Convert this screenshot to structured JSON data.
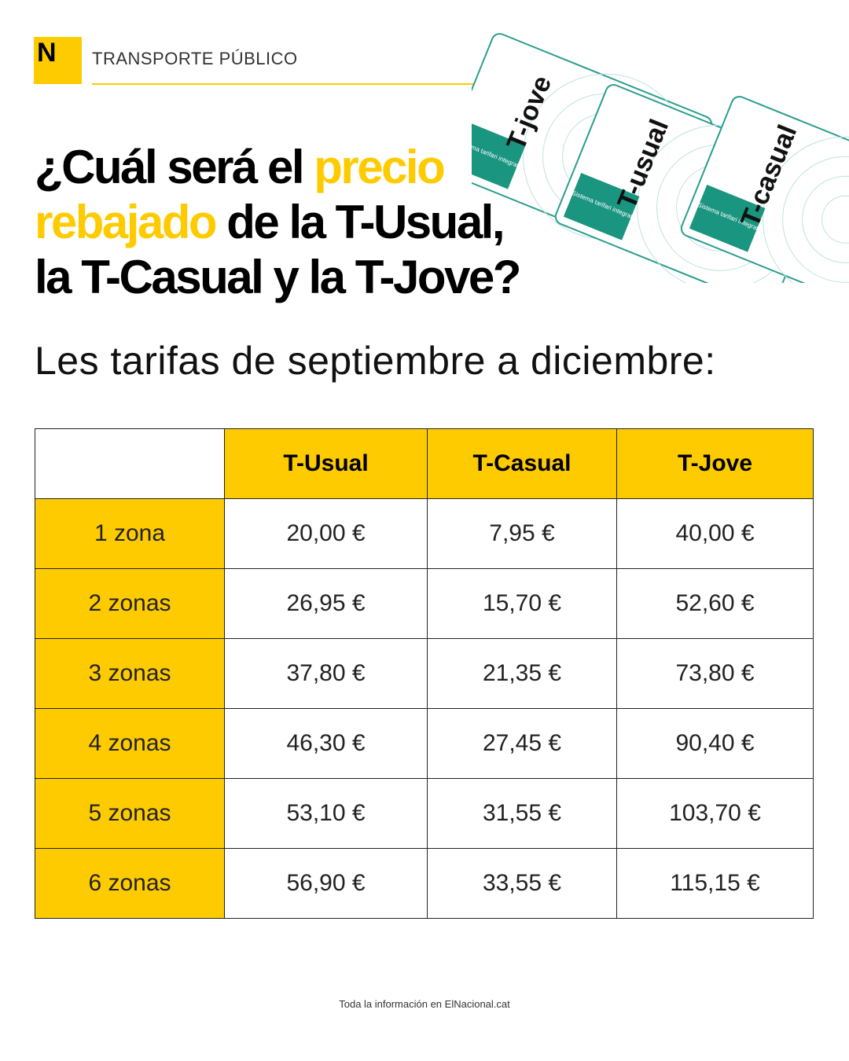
{
  "header": {
    "logo": "N",
    "section": "TRANSPORTE PÚBLICO"
  },
  "title": {
    "lines": [
      [
        {
          "text": "¿Cuál será el ",
          "highlight": false
        },
        {
          "text": "precio",
          "highlight": true
        }
      ],
      [
        {
          "text": "rebajado",
          "highlight": true
        },
        {
          "text": " de la T-Usual,",
          "highlight": false
        }
      ],
      [
        {
          "text": "la T-Casual y la T-Jove?",
          "highlight": false
        }
      ]
    ]
  },
  "subtitle": "Les tarifas de septiembre a diciembre:",
  "cards": [
    {
      "name": "T-jove",
      "label": "Sistema tarifari integrat"
    },
    {
      "name": "T-usual",
      "label": "Sistema tarifari integrat"
    },
    {
      "name": "T-casual",
      "label": "Sistema tarifari integrat"
    }
  ],
  "table": {
    "columns": [
      "T-Usual",
      "T-Casual",
      "T-Jove"
    ],
    "rows": [
      {
        "label": "1 zona",
        "cells": [
          "20,00 €",
          "7,95 €",
          "40,00 €"
        ]
      },
      {
        "label": "2 zonas",
        "cells": [
          "26,95 €",
          "15,70 €",
          "52,60 €"
        ]
      },
      {
        "label": "3 zonas",
        "cells": [
          "37,80 €",
          "21,35 €",
          "73,80 €"
        ]
      },
      {
        "label": "4 zonas",
        "cells": [
          "46,30 €",
          "27,45 €",
          "90,40 €"
        ]
      },
      {
        "label": "5 zonas",
        "cells": [
          "53,10 €",
          "31,55 €",
          "103,70 €"
        ]
      },
      {
        "label": "6 zonas",
        "cells": [
          "56,90 €",
          "33,55 €",
          "115,15 €"
        ]
      }
    ]
  },
  "footer": "Toda la información en ElNacional.cat"
}
